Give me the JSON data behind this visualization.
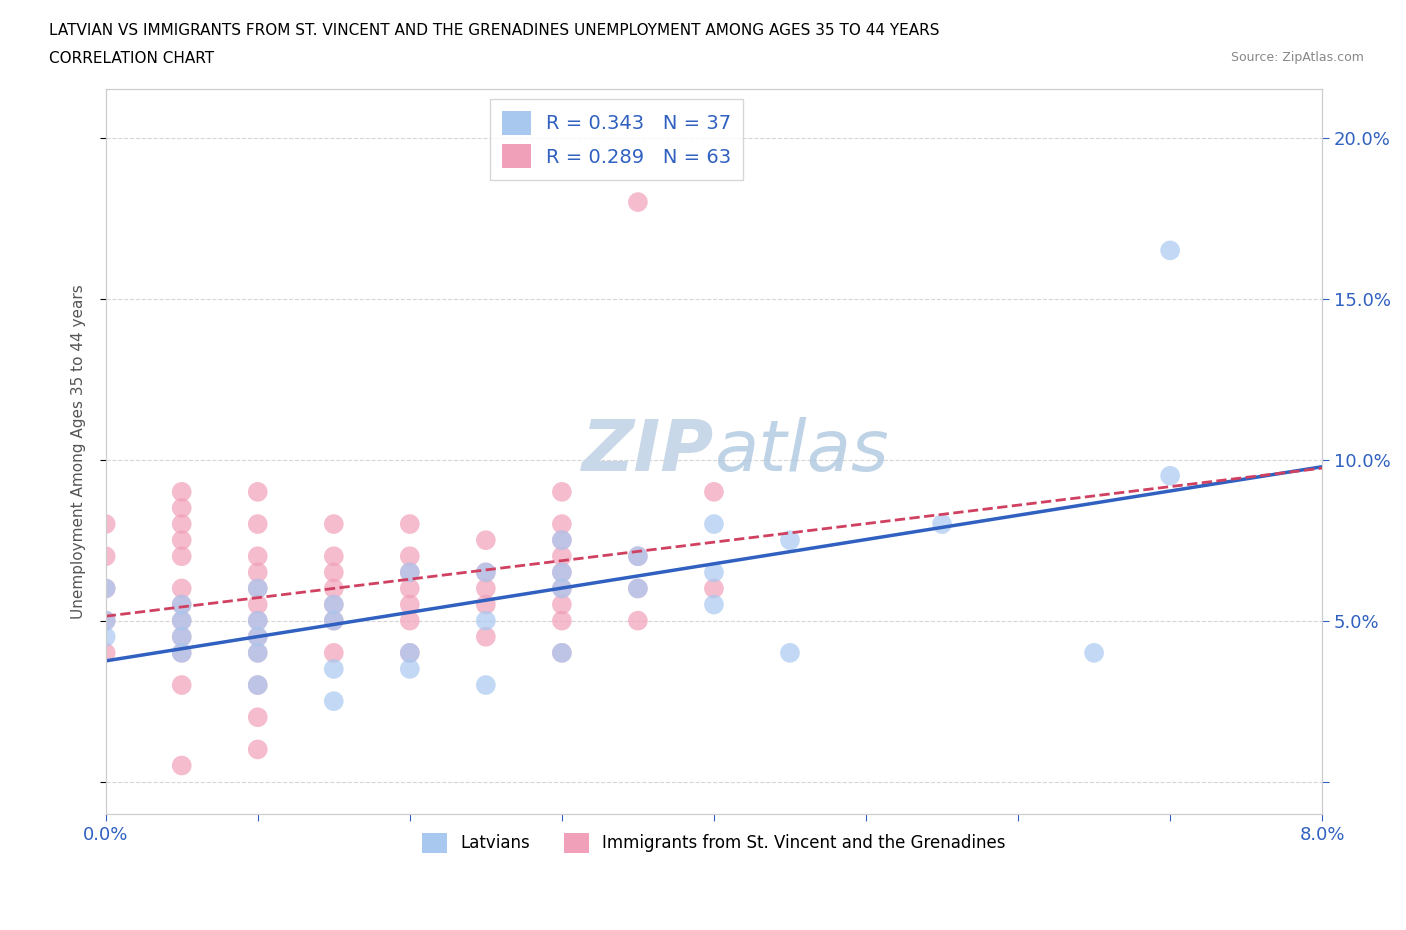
{
  "title_line1": "LATVIAN VS IMMIGRANTS FROM ST. VINCENT AND THE GRENADINES UNEMPLOYMENT AMONG AGES 35 TO 44 YEARS",
  "title_line2": "CORRELATION CHART",
  "source_text": "Source: ZipAtlas.com",
  "ylabel": "Unemployment Among Ages 35 to 44 years",
  "xlim": [
    0.0,
    0.08
  ],
  "ylim": [
    -0.01,
    0.215
  ],
  "xticks": [
    0.0,
    0.01,
    0.02,
    0.03,
    0.04,
    0.05,
    0.06,
    0.07,
    0.08
  ],
  "yticks": [
    0.0,
    0.05,
    0.1,
    0.15,
    0.2
  ],
  "ytick_labels": [
    "",
    "5.0%",
    "10.0%",
    "15.0%",
    "20.0%"
  ],
  "xtick_labels": [
    "0.0%",
    "",
    "",
    "",
    "",
    "",
    "",
    "",
    "8.0%"
  ],
  "legend_latvians_R": "0.343",
  "legend_latvians_N": "37",
  "legend_immigrants_R": "0.289",
  "legend_immigrants_N": "63",
  "color_latvians": "#a8c8f0",
  "color_immigrants": "#f0a0b8",
  "color_regression_latvians": "#3060c0",
  "color_regression_immigrants": "#d04060",
  "watermark_color": "#c8d8e8",
  "latvians_x": [
    0.0,
    0.0,
    0.0,
    0.005,
    0.005,
    0.005,
    0.005,
    0.01,
    0.01,
    0.01,
    0.01,
    0.01,
    0.015,
    0.015,
    0.015,
    0.015,
    0.02,
    0.02,
    0.02,
    0.025,
    0.025,
    0.025,
    0.03,
    0.03,
    0.03,
    0.03,
    0.035,
    0.035,
    0.04,
    0.04,
    0.04,
    0.045,
    0.045,
    0.055,
    0.065,
    0.07,
    0.07
  ],
  "latvians_y": [
    0.045,
    0.05,
    0.06,
    0.04,
    0.045,
    0.05,
    0.055,
    0.03,
    0.04,
    0.045,
    0.05,
    0.06,
    0.025,
    0.035,
    0.05,
    0.055,
    0.035,
    0.04,
    0.065,
    0.03,
    0.05,
    0.065,
    0.04,
    0.06,
    0.065,
    0.075,
    0.06,
    0.07,
    0.055,
    0.065,
    0.08,
    0.04,
    0.075,
    0.08,
    0.04,
    0.095,
    0.165
  ],
  "immigrants_x": [
    0.0,
    0.0,
    0.0,
    0.0,
    0.0,
    0.005,
    0.005,
    0.005,
    0.005,
    0.005,
    0.005,
    0.005,
    0.005,
    0.005,
    0.005,
    0.005,
    0.01,
    0.01,
    0.01,
    0.01,
    0.01,
    0.01,
    0.01,
    0.01,
    0.01,
    0.01,
    0.015,
    0.015,
    0.015,
    0.015,
    0.015,
    0.015,
    0.015,
    0.02,
    0.02,
    0.02,
    0.02,
    0.02,
    0.02,
    0.02,
    0.025,
    0.025,
    0.025,
    0.025,
    0.025,
    0.03,
    0.03,
    0.03,
    0.03,
    0.03,
    0.03,
    0.03,
    0.03,
    0.03,
    0.035,
    0.035,
    0.035,
    0.035,
    0.04,
    0.04,
    0.01,
    0.01,
    0.005
  ],
  "immigrants_y": [
    0.04,
    0.05,
    0.06,
    0.07,
    0.08,
    0.03,
    0.04,
    0.045,
    0.05,
    0.055,
    0.06,
    0.07,
    0.075,
    0.08,
    0.085,
    0.09,
    0.03,
    0.04,
    0.045,
    0.05,
    0.055,
    0.06,
    0.065,
    0.07,
    0.08,
    0.09,
    0.04,
    0.05,
    0.055,
    0.06,
    0.065,
    0.07,
    0.08,
    0.04,
    0.05,
    0.055,
    0.06,
    0.065,
    0.07,
    0.08,
    0.045,
    0.055,
    0.06,
    0.065,
    0.075,
    0.04,
    0.05,
    0.055,
    0.06,
    0.065,
    0.07,
    0.075,
    0.08,
    0.09,
    0.05,
    0.06,
    0.07,
    0.18,
    0.06,
    0.09,
    0.02,
    0.01,
    0.005
  ]
}
